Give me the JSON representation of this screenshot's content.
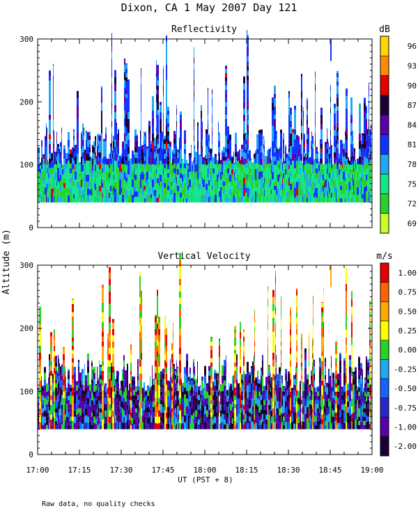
{
  "title": "Dixon, CA  1 May 2007  Day 121",
  "y_axis_label": "Altitude (m)",
  "x_axis_label": "UT  (PST + 8)",
  "footnote": "Raw data, no quality checks",
  "chart_data": [
    {
      "type": "heatmap",
      "title": "Reflectivity",
      "xlabel": "UT  (PST + 8)",
      "ylabel": "Altitude (m)",
      "x_ticks": [
        "17:00",
        "17:15",
        "17:30",
        "17:45",
        "18:00",
        "18:15",
        "18:30",
        "18:45",
        "19:00"
      ],
      "y_ticks": [
        "0",
        "100",
        "200",
        "300"
      ],
      "ylim": [
        0,
        300
      ],
      "x_range": [
        "17:00",
        "19:00"
      ],
      "data_altitude_range": [
        40,
        300
      ],
      "colorbar": {
        "unit": "dB",
        "labels": [
          "96",
          "93",
          "90",
          "87",
          "84",
          "81",
          "78",
          "75",
          "72",
          "69"
        ],
        "colors": [
          "#ffd700",
          "#ff8c00",
          "#e60000",
          "#1a0033",
          "#5a00a8",
          "#1432ff",
          "#1eaaf0",
          "#14e68c",
          "#28d228",
          "#c8ff28"
        ]
      }
    },
    {
      "type": "heatmap",
      "title": "Vertical Velocity",
      "xlabel": "UT  (PST + 8)",
      "ylabel": "Altitude (m)",
      "x_ticks": [
        "17:00",
        "17:15",
        "17:30",
        "17:45",
        "18:00",
        "18:15",
        "18:30",
        "18:45",
        "19:00"
      ],
      "y_ticks": [
        "0",
        "100",
        "200",
        "300"
      ],
      "ylim": [
        0,
        300
      ],
      "x_range": [
        "17:00",
        "19:00"
      ],
      "data_altitude_range": [
        40,
        300
      ],
      "colorbar": {
        "unit": "m/s",
        "labels": [
          "1.00",
          "0.75",
          "0.50",
          "0.25",
          "0.00",
          "-0.25",
          "-0.50",
          "-0.75",
          "-1.00",
          "-2.00"
        ],
        "colors": [
          "#e60000",
          "#ff6400",
          "#ffaa00",
          "#ffff00",
          "#28d228",
          "#1eaaf0",
          "#1464ff",
          "#2828c8",
          "#5a00a8",
          "#1a0033"
        ]
      }
    }
  ]
}
